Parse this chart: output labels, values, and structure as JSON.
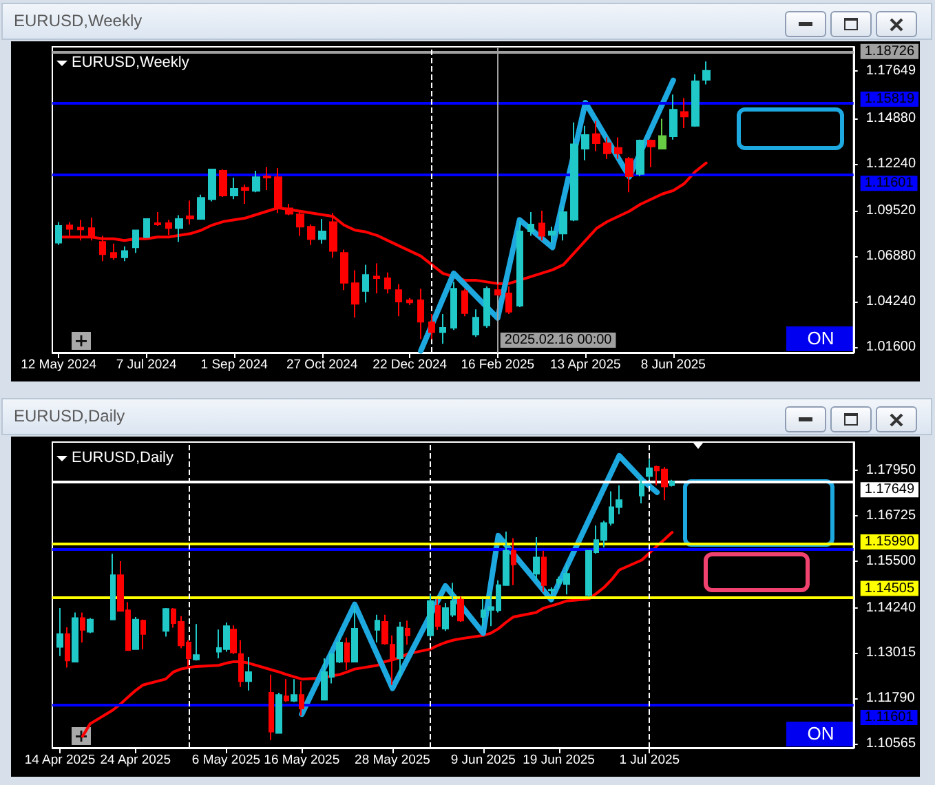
{
  "chart_data": [
    {
      "type": "candlestick",
      "title": "EURUSD,Weekly",
      "x": [
        "2024-05-12",
        "2024-05-19",
        "2024-05-26",
        "2024-06-02",
        "2024-06-09",
        "2024-06-16",
        "2024-06-23",
        "2024-06-30",
        "2024-07-07",
        "2024-07-14",
        "2024-07-21",
        "2024-07-28",
        "2024-08-04",
        "2024-08-11",
        "2024-08-18",
        "2024-08-25",
        "2024-09-01",
        "2024-09-08",
        "2024-09-15",
        "2024-09-22",
        "2024-09-29",
        "2024-10-06",
        "2024-10-13",
        "2024-10-20",
        "2024-10-27",
        "2024-11-03",
        "2024-11-10",
        "2024-11-17",
        "2024-11-24",
        "2024-12-01",
        "2024-12-08",
        "2024-12-15",
        "2024-12-22",
        "2024-12-29",
        "2025-01-05",
        "2025-01-12",
        "2025-01-19",
        "2025-01-26",
        "2025-02-02",
        "2025-02-09",
        "2025-02-16",
        "2025-02-23",
        "2025-03-02",
        "2025-03-09",
        "2025-03-16",
        "2025-03-23",
        "2025-03-30",
        "2025-04-06",
        "2025-04-13",
        "2025-04-20",
        "2025-04-27",
        "2025-05-04",
        "2025-05-11",
        "2025-05-18",
        "2025-05-25",
        "2025-06-01",
        "2025-06-08",
        "2025-06-15",
        "2025-06-22",
        "2025-06-29"
      ],
      "xlim": [
        "2024-05-08",
        "2025-10-01"
      ],
      "xticks": [
        {
          "value": "2024-05-12",
          "label": "12 May 2024"
        },
        {
          "value": "2024-07-07",
          "label": "7 Jul 2024"
        },
        {
          "value": "2024-09-01",
          "label": "1 Sep 2024"
        },
        {
          "value": "2024-10-27",
          "label": "27 Oct 2024"
        },
        {
          "value": "2024-12-22",
          "label": "22 Dec 2024"
        },
        {
          "value": "2025-02-16",
          "label": "16 Feb 2025"
        },
        {
          "value": "2025-04-13",
          "label": "13 Apr 2025"
        },
        {
          "value": "2025-06-08",
          "label": "8 Jun 2025"
        }
      ],
      "ohlc": [
        [
          1.0767,
          1.0887,
          1.0754,
          1.0865
        ],
        [
          1.0868,
          1.0887,
          1.0807,
          1.0847
        ],
        [
          1.0855,
          1.09,
          1.078,
          1.0844
        ],
        [
          1.0852,
          1.0913,
          1.078,
          1.0801
        ],
        [
          1.0772,
          1.0807,
          1.066,
          1.07
        ],
        [
          1.0708,
          1.0762,
          1.0668,
          1.0682
        ],
        [
          1.0682,
          1.0746,
          1.066,
          1.0719
        ],
        [
          1.074,
          1.0839,
          1.0708,
          1.0839
        ],
        [
          1.0799,
          1.0905,
          1.0794,
          1.0905
        ],
        [
          1.0881,
          1.0945,
          1.0865,
          1.0873
        ],
        [
          1.0881,
          1.09,
          1.0812,
          1.0852
        ],
        [
          1.0852,
          1.0927,
          1.0772,
          1.0905
        ],
        [
          1.0921,
          1.1012,
          1.0873,
          1.0908
        ],
        [
          1.0905,
          1.1046,
          1.0905,
          1.1028
        ],
        [
          1.102,
          1.1193,
          1.1007,
          1.1193
        ],
        [
          1.1185,
          1.1193,
          1.1033,
          1.1041
        ],
        [
          1.1041,
          1.1145,
          1.102,
          1.1081
        ],
        [
          1.1086,
          1.1105,
          1.0993,
          1.1073
        ],
        [
          1.1068,
          1.1185,
          1.106,
          1.1148
        ],
        [
          1.1153,
          1.1206,
          1.1073,
          1.1145
        ],
        [
          1.1148,
          1.1201,
          1.094,
          1.0967
        ],
        [
          1.0967,
          1.0993,
          1.0927,
          1.0935
        ],
        [
          1.0932,
          1.0953,
          1.0807,
          1.086
        ],
        [
          1.086,
          1.0873,
          1.0754,
          1.0788
        ],
        [
          1.0788,
          1.0905,
          1.0762,
          1.0833
        ],
        [
          1.0887,
          1.094,
          1.0679,
          1.0719
        ],
        [
          1.0708,
          1.0727,
          1.0493,
          1.0535
        ],
        [
          1.0533,
          1.0607,
          1.0333,
          1.0413
        ],
        [
          1.0487,
          1.0639,
          1.0421,
          1.058
        ],
        [
          1.0572,
          1.0647,
          1.0474,
          1.0562
        ],
        [
          1.0562,
          1.0594,
          1.0474,
          1.0501
        ],
        [
          1.0493,
          1.0527,
          1.0341,
          1.0426
        ],
        [
          1.0434,
          1.0447,
          1.0407,
          1.0421
        ],
        [
          1.0434,
          1.0501,
          1.0208,
          1.0309
        ],
        [
          1.0306,
          1.0354,
          1.0208,
          1.0248
        ],
        [
          1.0248,
          1.0354,
          1.0181,
          1.0274
        ],
        [
          1.0274,
          1.0541,
          1.0261,
          1.0501
        ],
        [
          1.0487,
          1.0501,
          1.0341,
          1.0359
        ],
        [
          1.0234,
          1.0381,
          1.0221,
          1.0333
        ],
        [
          1.0288,
          1.0514,
          1.0274,
          1.0501
        ],
        [
          1.0493,
          1.0527,
          1.0461,
          1.0466
        ],
        [
          1.0474,
          1.0514,
          1.0354,
          1.0367
        ],
        [
          1.0402,
          1.0892,
          1.0394,
          1.0833
        ],
        [
          1.0833,
          1.0945,
          1.0807,
          1.0873
        ],
        [
          1.0879,
          1.0953,
          1.078,
          1.0807
        ],
        [
          1.0812,
          1.086,
          1.0767,
          1.0833
        ],
        [
          1.082,
          1.098,
          1.078,
          1.0945
        ],
        [
          1.09,
          1.1465,
          1.0892,
          1.1339
        ],
        [
          1.1313,
          1.1446,
          1.1246,
          1.1393
        ],
        [
          1.1398,
          1.1473,
          1.1299,
          1.1345
        ],
        [
          1.1345,
          1.1379,
          1.1254,
          1.1286
        ],
        [
          1.1318,
          1.1379,
          1.1254,
          1.1286
        ],
        [
          1.1254,
          1.1265,
          1.106,
          1.1153
        ],
        [
          1.1166,
          1.1366,
          1.1153,
          1.1361
        ],
        [
          1.1361,
          1.1366,
          1.1206,
          1.1326
        ],
        [
          1.1313,
          1.1486,
          1.1313,
          1.1387
        ],
        [
          1.1385,
          1.1627,
          1.1366,
          1.1539
        ],
        [
          1.1526,
          1.1606,
          1.1433,
          1.1499
        ],
        [
          1.1446,
          1.1744,
          1.1441,
          1.1704
        ],
        [
          1.1712,
          1.1819,
          1.1686,
          1.17649
        ]
      ],
      "colors": [
        "#20c8c8",
        "#ff0000",
        "#ff0000",
        "#ff0000",
        "#ff0000",
        "#ff0000",
        "#20c8c8",
        "#20c8c8",
        "#20c8c8",
        "#ff0000",
        "#ff0000",
        "#20c8c8",
        "#ff0000",
        "#20c8c8",
        "#20c8c8",
        "#ff0000",
        "#20c8c8",
        "#ff0000",
        "#20c8c8",
        "#ff0000",
        "#ff0000",
        "#ff0000",
        "#ff0000",
        "#ff0000",
        "#20c8c8",
        "#ff0000",
        "#ff0000",
        "#ff0000",
        "#20c8c8",
        "#ff0000",
        "#ff0000",
        "#ff0000",
        "#ff0000",
        "#ff0000",
        "#ff0000",
        "#20c8c8",
        "#20c8c8",
        "#ff0000",
        "#20c8c8",
        "#20c8c8",
        "#ff0000",
        "#ff0000",
        "#20c8c8",
        "#20c8c8",
        "#ff0000",
        "#20c8c8",
        "#20c8c8",
        "#20c8c8",
        "#20c8c8",
        "#ff0000",
        "#ff0000",
        "#ff0000",
        "#ff0000",
        "#20c8c8",
        "#ff0000",
        "#66cc44",
        "#20c8c8",
        "#ff0000",
        "#20c8c8",
        "#20c8c8"
      ],
      "series": [
        {
          "type": "line",
          "color": "#ff0000",
          "values": [
            1.08,
            1.08,
            1.08,
            1.08,
            1.079,
            1.079,
            1.078,
            1.079,
            1.079,
            1.08,
            1.08,
            1.081,
            1.082,
            1.084,
            1.087,
            1.089,
            1.09,
            1.091,
            1.093,
            1.095,
            1.097,
            1.096,
            1.095,
            1.094,
            1.093,
            1.092,
            1.087,
            1.084,
            1.083,
            1.081,
            1.078,
            1.075,
            1.072,
            1.069,
            1.064,
            1.059,
            1.057,
            1.055,
            1.055,
            1.054,
            1.053,
            1.053,
            1.055,
            1.057,
            1.059,
            1.061,
            1.064,
            1.071,
            1.078,
            1.085,
            1.089,
            1.092,
            1.095,
            1.099,
            1.102,
            1.105,
            1.107,
            1.111,
            1.118,
            1.123
          ]
        },
        {
          "type": "line",
          "color": "#1ea8e0",
          "x": [
            "2024-12-29",
            "2025-01-19",
            "2025-02-16",
            "2025-03-02",
            "2025-03-23",
            "2025-04-13",
            "2025-05-11",
            "2025-06-08"
          ],
          "values": [
            1.014,
            1.059,
            1.033,
            1.09,
            1.074,
            1.158,
            1.115,
            1.171
          ]
        }
      ],
      "ylim": [
        1.013,
        1.1904
      ],
      "yticks": [
        {
          "value": 1.016,
          "label": "1.01600"
        },
        {
          "value": 1.0424,
          "label": "1.04240"
        },
        {
          "value": 1.0688,
          "label": "1.06880"
        },
        {
          "value": 1.0952,
          "label": "1.09520"
        },
        {
          "value": 1.1224,
          "label": "1.12240"
        },
        {
          "value": 1.1488,
          "label": "1.14880"
        },
        1.17649
      ],
      "ref_lines": [
        {
          "axis": "y",
          "value": 1.18726,
          "label": "1.18726",
          "color": "#a0a0a0"
        },
        {
          "axis": "y",
          "value": 1.15819,
          "label": "1.15819",
          "color": "#0000ff"
        },
        {
          "axis": "y",
          "value": 1.11601,
          "label": "1.11601",
          "color": "#0000ff"
        },
        {
          "axis": "x",
          "value": "2025-01-05",
          "color": "#ffffff",
          "line_style": "dashed"
        },
        {
          "axis": "x",
          "value": "2025-02-16",
          "label": "2025.02.16 00:00",
          "color": "#a0a0a0"
        }
      ],
      "annotations": [
        "ON"
      ]
    },
    {
      "type": "candlestick",
      "title": "EURUSD,Daily",
      "x": [
        "2025-04-14",
        "2025-04-15",
        "2025-04-16",
        "2025-04-17",
        "2025-04-18",
        "2025-04-21",
        "2025-04-22",
        "2025-04-23",
        "2025-04-24",
        "2025-04-25",
        "2025-04-28",
        "2025-04-29",
        "2025-04-30",
        "2025-05-01",
        "2025-05-02",
        "2025-05-05",
        "2025-05-06",
        "2025-05-07",
        "2025-05-08",
        "2025-05-09",
        "2025-05-12",
        "2025-05-13",
        "2025-05-14",
        "2025-05-15",
        "2025-05-16",
        "2025-05-19",
        "2025-05-20",
        "2025-05-21",
        "2025-05-22",
        "2025-05-23",
        "2025-05-26",
        "2025-05-27",
        "2025-05-28",
        "2025-05-29",
        "2025-05-30",
        "2025-06-02",
        "2025-06-03",
        "2025-06-04",
        "2025-06-05",
        "2025-06-06",
        "2025-06-09",
        "2025-06-10",
        "2025-06-11",
        "2025-06-12",
        "2025-06-13",
        "2025-06-16",
        "2025-06-17",
        "2025-06-18",
        "2025-06-19",
        "2025-06-20",
        "2025-06-23",
        "2025-06-24",
        "2025-06-25",
        "2025-06-26",
        "2025-06-27",
        "2025-06-30",
        "2025-07-01",
        "2025-07-02",
        "2025-07-03",
        "2025-07-04"
      ],
      "xlim": [
        "2025-04-13",
        "2025-07-28"
      ],
      "xticks": [
        {
          "value": "2025-04-14",
          "label": "14 Apr 2025"
        },
        {
          "value": "2025-04-24",
          "label": "24 Apr 2025"
        },
        {
          "value": "2025-05-06",
          "label": "6 May 2025"
        },
        {
          "value": "2025-05-16",
          "label": "16 May 2025"
        },
        {
          "value": "2025-05-28",
          "label": "28 May 2025"
        },
        {
          "value": "2025-06-09",
          "label": "9 Jun 2025"
        },
        {
          "value": "2025-06-19",
          "label": "19 Jun 2025"
        },
        {
          "value": "2025-07-01",
          "label": "1 Jul 2025"
        }
      ],
      "ohlc": [
        [
          1.1318,
          1.1423,
          1.1293,
          1.1353
        ],
        [
          1.1353,
          1.1371,
          1.1262,
          1.1281
        ],
        [
          1.1278,
          1.1411,
          1.1278,
          1.1396
        ],
        [
          1.1396,
          1.1411,
          1.133,
          1.1364
        ],
        [
          1.1359,
          1.1396,
          1.1355,
          1.1392
        ],
        [
          1.1392,
          1.157,
          1.1392,
          1.1512
        ],
        [
          1.1512,
          1.155,
          1.1415,
          1.1415
        ],
        [
          1.1417,
          1.1439,
          1.1309,
          1.1309
        ],
        [
          1.1312,
          1.1399,
          1.1312,
          1.1392
        ],
        [
          1.1389,
          1.1392,
          1.1312,
          1.1353
        ],
        [
          1.1361,
          1.1423,
          1.1346,
          1.1421
        ],
        [
          1.142,
          1.1423,
          1.137,
          1.1382
        ],
        [
          1.1386,
          1.1401,
          1.1314,
          1.1322
        ],
        [
          1.133,
          1.1336,
          1.1262,
          1.1287
        ],
        [
          1.1284,
          1.138,
          1.1281,
          1.1296
        ],
        [
          1.1305,
          1.1365,
          1.1287,
          1.1315
        ],
        [
          1.1312,
          1.1384,
          1.1305,
          1.1374
        ],
        [
          1.1365,
          1.1376,
          1.1299,
          1.1303
        ],
        [
          1.1299,
          1.1336,
          1.121,
          1.1225
        ],
        [
          1.1225,
          1.1291,
          1.12,
          1.125
        ],
        [
          1.1194,
          1.1243,
          1.1066,
          1.1089
        ],
        [
          1.1085,
          1.1194,
          1.1085,
          1.1188
        ],
        [
          1.1184,
          1.1231,
          1.1169,
          1.1173
        ],
        [
          1.1172,
          1.1231,
          1.1169,
          1.1188
        ],
        [
          1.1188,
          1.1225,
          1.1132,
          1.1151
        ],
        [
          1.1175,
          1.1287,
          1.1175,
          1.125
        ],
        [
          1.1237,
          1.1299,
          1.1219,
          1.1299
        ],
        [
          1.1278,
          1.1349,
          1.1274,
          1.133
        ],
        [
          1.1328,
          1.1343,
          1.1256,
          1.1278
        ],
        [
          1.1278,
          1.1429,
          1.1278,
          1.1367
        ],
        [
          1.1364,
          1.1405,
          1.133,
          1.1389
        ],
        [
          1.1386,
          1.1405,
          1.1324,
          1.1327
        ],
        [
          1.1324,
          1.1349,
          1.1215,
          1.1287
        ],
        [
          1.1287,
          1.1386,
          1.1237,
          1.1371
        ],
        [
          1.1367,
          1.1389,
          1.1324,
          1.1349
        ],
        [
          1.1349,
          1.146,
          1.1343,
          1.1442
        ],
        [
          1.1429,
          1.1448,
          1.1364,
          1.1374
        ],
        [
          1.1367,
          1.1436,
          1.1361,
          1.1423
        ],
        [
          1.1405,
          1.1491,
          1.1399,
          1.1442
        ],
        [
          1.1446,
          1.1454,
          1.1386,
          1.1389
        ],
        [
          1.1399,
          1.1448,
          1.1374,
          1.1417
        ],
        [
          1.1418,
          1.1467,
          1.1374,
          1.1426
        ],
        [
          1.1417,
          1.1498,
          1.1411,
          1.1485
        ],
        [
          1.1485,
          1.163,
          1.1485,
          1.1578
        ],
        [
          1.1578,
          1.1612,
          1.1485,
          1.1541
        ],
        [
          1.1516,
          1.1615,
          1.1498,
          1.156
        ],
        [
          1.156,
          1.1578,
          1.1467,
          1.1485
        ],
        [
          1.1471,
          1.1479,
          1.146,
          1.1473
        ],
        [
          1.1491,
          1.1508,
          1.1479,
          1.15
        ],
        [
          1.1488,
          1.1541,
          1.146,
          1.1516
        ],
        [
          1.1458,
          1.1578,
          1.1454,
          1.1578
        ],
        [
          1.1574,
          1.1646,
          1.157,
          1.1607
        ],
        [
          1.1607,
          1.1659,
          1.1587,
          1.1653
        ],
        [
          1.1653,
          1.1739,
          1.1646,
          1.1696
        ],
        [
          1.1696,
          1.1755,
          1.1677,
          1.1715
        ],
        [
          1.1727,
          1.1777,
          1.1706,
          1.1758
        ],
        [
          1.178,
          1.1826,
          1.177,
          1.1801
        ],
        [
          1.1805,
          1.1808,
          1.1755,
          1.1795
        ],
        [
          1.1798,
          1.1805,
          1.1715,
          1.1752
        ],
        [
          1.1755,
          1.177,
          1.1752,
          1.17649
        ]
      ],
      "colors": [
        "#20c8c8",
        "#ff0000",
        "#20c8c8",
        "#ff0000",
        "#20c8c8",
        "#20c8c8",
        "#ff0000",
        "#ff0000",
        "#20c8c8",
        "#ff0000",
        "#20c8c8",
        "#ff0000",
        "#ff0000",
        "#ff0000",
        "#20c8c8",
        "#20c8c8",
        "#20c8c8",
        "#ff0000",
        "#ff0000",
        "#20c8c8",
        "#ff0000",
        "#20c8c8",
        "#ff0000",
        "#20c8c8",
        "#ff0000",
        "#20c8c8",
        "#20c8c8",
        "#20c8c8",
        "#ff0000",
        "#20c8c8",
        "#20c8c8",
        "#ff0000",
        "#ff0000",
        "#20c8c8",
        "#ff0000",
        "#20c8c8",
        "#ff0000",
        "#20c8c8",
        "#20c8c8",
        "#ff0000",
        "#20c8c8",
        "#20c8c8",
        "#20c8c8",
        "#20c8c8",
        "#ff0000",
        "#20c8c8",
        "#ff0000",
        "#20c8c8",
        "#20c8c8",
        "#20c8c8",
        "#20c8c8",
        "#20c8c8",
        "#20c8c8",
        "#20c8c8",
        "#20c8c8",
        "#20c8c8",
        "#20c8c8",
        "#ff0000",
        "#ff0000",
        "#20c8c8"
      ],
      "series": [
        {
          "type": "line",
          "color": "#ff0000",
          "values": [
            null,
            null,
            null,
            1.1076,
            1.111,
            1.1147,
            1.1163,
            1.1182,
            1.12,
            1.1215,
            1.1231,
            1.125,
            1.1258,
            1.1262,
            1.1265,
            1.1268,
            1.1274,
            1.1278,
            1.1278,
            1.1274,
            1.1256,
            1.125,
            1.1243,
            1.1237,
            1.1231,
            1.1234,
            1.124,
            1.1243,
            1.125,
            1.1258,
            1.1268,
            1.1278,
            1.1283,
            1.1289,
            1.1299,
            1.1312,
            1.1322,
            1.133,
            1.1336,
            1.134,
            1.1349,
            1.1355,
            1.1367,
            1.1384,
            1.1399,
            1.1411,
            1.1423,
            1.1429,
            1.1435,
            1.1442,
            1.1448,
            1.1463,
            1.1479,
            1.15,
            1.1526,
            1.1553,
            1.1572,
            1.1591,
            1.1609,
            1.1628
          ]
        },
        {
          "type": "line",
          "color": "#1ea8e0",
          "x": [
            "2025-05-16",
            "2025-05-23",
            "2025-05-28",
            "2025-06-04",
            "2025-06-09",
            "2025-06-11",
            "2025-06-18",
            "2025-06-27",
            "2025-06-30",
            "2025-07-02"
          ],
          "values": [
            1.1136,
            1.1433,
            1.1206,
            1.1483,
            1.1355,
            1.1619,
            1.1446,
            1.1835,
            1.177,
            1.1736
          ]
        }
      ],
      "ylim": [
        1.1045,
        1.1872
      ],
      "yticks": [
        1.10565,
        {
          "value": 1.1179,
          "label": "1.11790"
        },
        1.13015,
        {
          "value": 1.1424,
          "label": "1.14240"
        },
        {
          "value": 1.155,
          "label": "1.15500"
        },
        1.16725,
        {
          "value": 1.1795,
          "label": "1.17950"
        }
      ],
      "ref_lines": [
        {
          "axis": "y",
          "value": 1.17649,
          "label": "1.17649",
          "color": "#ffffff"
        },
        {
          "axis": "y",
          "value": 1.1599,
          "label": "1.15990",
          "color": "#ffff00"
        },
        {
          "axis": "y",
          "value": 1.15819,
          "color": "#0000ff"
        },
        {
          "axis": "y",
          "value": 1.14505,
          "label": "1.14505",
          "color": "#ffff00"
        },
        {
          "axis": "y",
          "value": 1.11601,
          "label": "1.11601",
          "color": "#0000ff"
        },
        {
          "axis": "x",
          "value": "2025-05-01",
          "color": "#ffffff",
          "line_style": "dashed"
        },
        {
          "axis": "x",
          "value": "2025-06-02",
          "color": "#ffffff",
          "line_style": "dashed"
        },
        {
          "axis": "x",
          "value": "2025-07-01",
          "color": "#ffffff",
          "line_style": "dashed"
        }
      ],
      "annotations": [
        "ON"
      ]
    }
  ]
}
